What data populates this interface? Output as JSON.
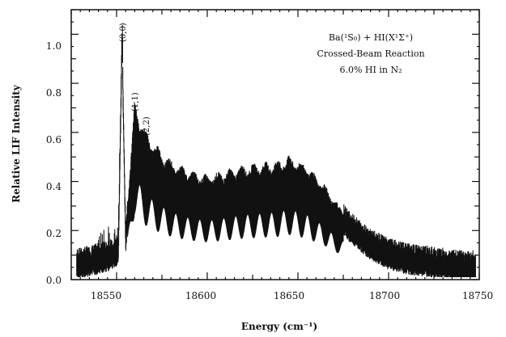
{
  "chart_data": {
    "type": "line",
    "xlabel": "Energy (cm⁻¹)",
    "ylabel": "Relative LIF Intensity",
    "xlim": [
      18525,
      18750
    ],
    "ylim": [
      0.0,
      1.1
    ],
    "x_ticks": [
      "18550",
      "18600",
      "18650",
      "18700",
      "18750"
    ],
    "y_ticks": [
      "0.0",
      "0.2",
      "0.4",
      "0.6",
      "0.8",
      "1.0"
    ],
    "annotation_lines": [
      "Ba(¹S₀) + HI(X¹Σ⁺)",
      "Crossed-Beam Reaction",
      "6.0% HI in N₂"
    ],
    "peak_labels": [
      {
        "text": "(0,0)",
        "x": 18553,
        "y": 1.0
      },
      {
        "text": "(1,1)",
        "x": 18560,
        "y": 0.7
      },
      {
        "text": "(2,2)",
        "x": 18566,
        "y": 0.58
      }
    ],
    "series": [
      {
        "style": "noisy-band",
        "x": [
          18530,
          18540,
          18548,
          18551,
          18553,
          18555,
          18560,
          18566,
          18572,
          18580,
          18590,
          18600,
          18610,
          18620,
          18630,
          18640,
          18645,
          18650,
          18655,
          18660,
          18665,
          18670,
          18680,
          18690,
          18700,
          18710,
          18720,
          18730,
          18740,
          18748
        ],
        "y": [
          0.08,
          0.1,
          0.12,
          0.14,
          1.0,
          0.18,
          0.7,
          0.58,
          0.52,
          0.46,
          0.42,
          0.4,
          0.42,
          0.44,
          0.45,
          0.46,
          0.48,
          0.46,
          0.44,
          0.4,
          0.36,
          0.3,
          0.22,
          0.16,
          0.12,
          0.1,
          0.09,
          0.08,
          0.07,
          0.07
        ]
      }
    ],
    "grid": false,
    "legend": "none"
  }
}
